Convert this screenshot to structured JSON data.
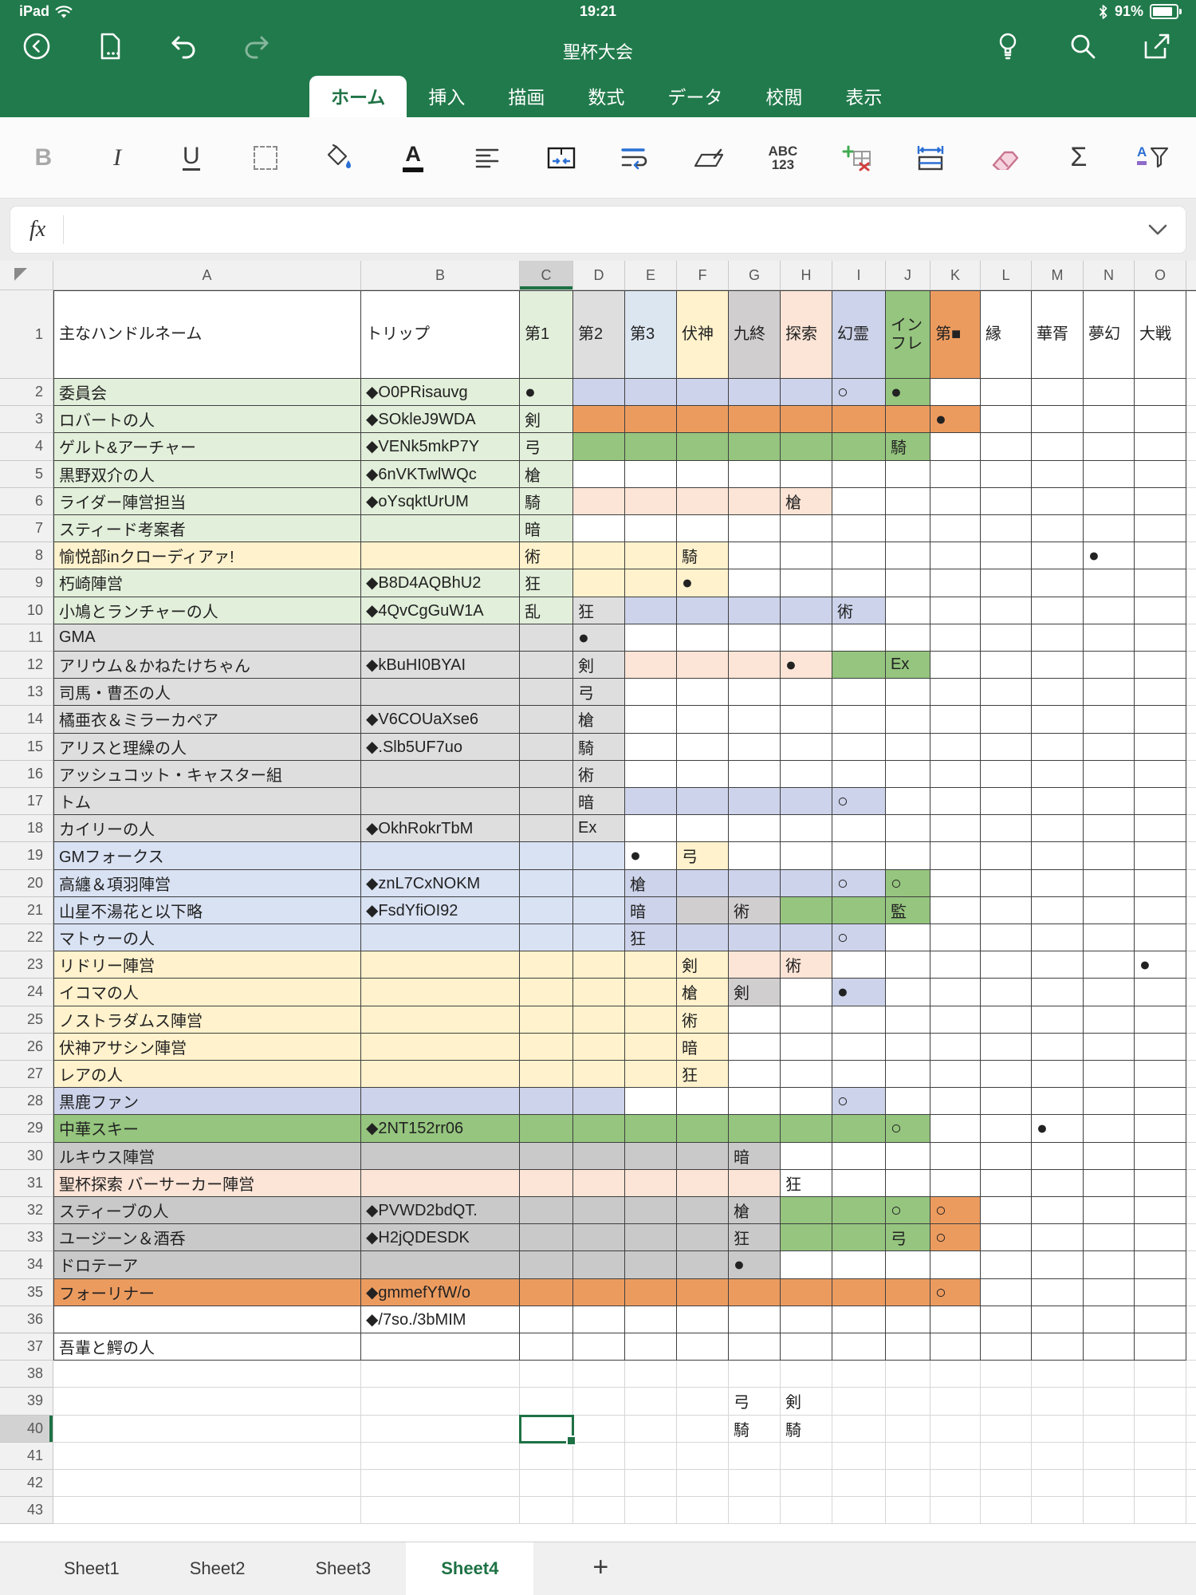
{
  "status_bar": {
    "device_label": "iPad",
    "time": "19:21",
    "battery_percent": "91%",
    "icons": [
      "wifi-icon",
      "bluetooth-icon",
      "battery-icon"
    ]
  },
  "title_bar": {
    "document_title": "聖杯大会",
    "left_icons": [
      "back-icon",
      "export-icon",
      "undo-icon",
      "redo-icon"
    ],
    "right_icons": [
      "ideas-icon",
      "search-icon",
      "share-icon"
    ]
  },
  "ribbon": {
    "tabs": [
      {
        "label": "ホーム",
        "active": true
      },
      {
        "label": "挿入",
        "active": false
      },
      {
        "label": "描画",
        "active": false
      },
      {
        "label": "数式",
        "active": false
      },
      {
        "label": "データ",
        "active": false
      },
      {
        "label": "校閲",
        "active": false
      },
      {
        "label": "表示",
        "active": false
      }
    ]
  },
  "toolbar": {
    "icons": [
      "bold",
      "italic",
      "underline",
      "borders",
      "fill-color",
      "font-color",
      "alignment",
      "merge-cells",
      "wrap-text",
      "format-painter",
      "number-format",
      "insert-delete-cells",
      "cell-size",
      "clear",
      "autosum",
      "sort-filter"
    ],
    "glyphs": {
      "bold": "B",
      "italic": "I",
      "underline": "U",
      "abc": "ABC",
      "numbers": "123",
      "autosum": "Σ",
      "sort_letter": "A"
    }
  },
  "formula_bar": {
    "fx_label": "fx",
    "value": ""
  },
  "sheet_bar": {
    "tabs": [
      "Sheet1",
      "Sheet2",
      "Sheet3",
      "Sheet4"
    ],
    "active": "Sheet4",
    "add_label": "+"
  },
  "colors": {
    "ribbon_green": "#217A4B",
    "selection_green": "#1E7145",
    "active_tab_text": "#217346"
  },
  "grid": {
    "column_letters": [
      "A",
      "B",
      "C",
      "D",
      "E",
      "F",
      "G",
      "H",
      "I",
      "J",
      "K",
      "L",
      "M",
      "N",
      "O"
    ],
    "row_count": 43,
    "selected_cell": {
      "column": "C",
      "row": 40
    },
    "fills": {
      "g": "#E2EFDA",
      "y": "#FFF2CC",
      "gy": "#DEDEDE",
      "bl": "#D9E2F3",
      "lv": "#CCD3EA",
      "gn": "#95C57E",
      "or": "#EC9B5F",
      "pk": "#FCE4D6",
      "dg": "#C9C9C9",
      "hg": "#D0CECE",
      "hb": "#DCE6F1"
    },
    "fill_ranges": [
      [
        1,
        "C",
        "C",
        "g"
      ],
      [
        1,
        "D",
        "D",
        "gy"
      ],
      [
        1,
        "E",
        "E",
        "hb"
      ],
      [
        1,
        "F",
        "F",
        "y"
      ],
      [
        1,
        "G",
        "G",
        "hg"
      ],
      [
        1,
        "H",
        "H",
        "pk"
      ],
      [
        1,
        "I",
        "I",
        "lv"
      ],
      [
        1,
        "J",
        "J",
        "gn"
      ],
      [
        1,
        "K",
        "K",
        "or"
      ],
      [
        2,
        "A",
        "C",
        "g"
      ],
      [
        2,
        "D",
        "I",
        "lv"
      ],
      [
        2,
        "J",
        "J",
        "gn"
      ],
      [
        3,
        "A",
        "C",
        "g"
      ],
      [
        3,
        "D",
        "K",
        "or"
      ],
      [
        4,
        "A",
        "C",
        "g"
      ],
      [
        4,
        "D",
        "J",
        "gn"
      ],
      [
        5,
        "A",
        "C",
        "g"
      ],
      [
        6,
        "A",
        "C",
        "g"
      ],
      [
        6,
        "D",
        "H",
        "pk"
      ],
      [
        7,
        "A",
        "C",
        "g"
      ],
      [
        8,
        "A",
        "F",
        "y"
      ],
      [
        9,
        "A",
        "C",
        "g"
      ],
      [
        9,
        "D",
        "F",
        "y"
      ],
      [
        10,
        "A",
        "C",
        "g"
      ],
      [
        10,
        "D",
        "D",
        "gy"
      ],
      [
        10,
        "E",
        "I",
        "lv"
      ],
      [
        11,
        "A",
        "D",
        "gy"
      ],
      [
        12,
        "A",
        "D",
        "gy"
      ],
      [
        12,
        "E",
        "H",
        "pk"
      ],
      [
        12,
        "I",
        "J",
        "gn"
      ],
      [
        13,
        "A",
        "D",
        "gy"
      ],
      [
        14,
        "A",
        "D",
        "gy"
      ],
      [
        15,
        "A",
        "D",
        "gy"
      ],
      [
        16,
        "A",
        "D",
        "gy"
      ],
      [
        17,
        "A",
        "D",
        "gy"
      ],
      [
        17,
        "E",
        "I",
        "lv"
      ],
      [
        18,
        "A",
        "D",
        "gy"
      ],
      [
        19,
        "A",
        "D",
        "bl"
      ],
      [
        19,
        "F",
        "F",
        "y"
      ],
      [
        20,
        "A",
        "D",
        "bl"
      ],
      [
        20,
        "E",
        "I",
        "lv"
      ],
      [
        20,
        "J",
        "J",
        "gn"
      ],
      [
        21,
        "A",
        "D",
        "bl"
      ],
      [
        21,
        "E",
        "E",
        "lv"
      ],
      [
        21,
        "F",
        "G",
        "hg"
      ],
      [
        21,
        "H",
        "J",
        "gn"
      ],
      [
        22,
        "A",
        "D",
        "bl"
      ],
      [
        22,
        "E",
        "I",
        "lv"
      ],
      [
        23,
        "A",
        "F",
        "y"
      ],
      [
        23,
        "G",
        "H",
        "pk"
      ],
      [
        24,
        "A",
        "F",
        "y"
      ],
      [
        24,
        "G",
        "G",
        "hg"
      ],
      [
        24,
        "I",
        "I",
        "lv"
      ],
      [
        25,
        "A",
        "F",
        "y"
      ],
      [
        26,
        "A",
        "F",
        "y"
      ],
      [
        27,
        "A",
        "F",
        "y"
      ],
      [
        28,
        "A",
        "D",
        "lv"
      ],
      [
        28,
        "I",
        "I",
        "lv"
      ],
      [
        29,
        "A",
        "J",
        "gn"
      ],
      [
        30,
        "A",
        "G",
        "dg"
      ],
      [
        31,
        "A",
        "G",
        "pk"
      ],
      [
        32,
        "A",
        "G",
        "dg"
      ],
      [
        32,
        "H",
        "J",
        "gn"
      ],
      [
        32,
        "K",
        "K",
        "or"
      ],
      [
        33,
        "A",
        "G",
        "dg"
      ],
      [
        33,
        "H",
        "J",
        "gn"
      ],
      [
        33,
        "K",
        "K",
        "or"
      ],
      [
        34,
        "A",
        "G",
        "dg"
      ],
      [
        35,
        "A",
        "K",
        "or"
      ]
    ],
    "cells": [
      [
        1,
        "A",
        "主なハンドルネーム"
      ],
      [
        1,
        "B",
        "トリップ"
      ],
      [
        1,
        "C",
        "第1"
      ],
      [
        1,
        "D",
        "第2"
      ],
      [
        1,
        "E",
        "第3"
      ],
      [
        1,
        "F",
        "伏神"
      ],
      [
        1,
        "G",
        "九終"
      ],
      [
        1,
        "H",
        "探索"
      ],
      [
        1,
        "I",
        "幻霊"
      ],
      [
        1,
        "J",
        "インフレ"
      ],
      [
        1,
        "K",
        "第■"
      ],
      [
        1,
        "L",
        "縁"
      ],
      [
        1,
        "M",
        "華胥"
      ],
      [
        1,
        "N",
        "夢幻"
      ],
      [
        1,
        "O",
        "大戦"
      ],
      [
        2,
        "A",
        "委員会"
      ],
      [
        2,
        "B",
        "◆O0PRisauvg"
      ],
      [
        2,
        "C",
        "●"
      ],
      [
        2,
        "I",
        "○"
      ],
      [
        2,
        "J",
        "●"
      ],
      [
        3,
        "A",
        "ロバートの人"
      ],
      [
        3,
        "B",
        "◆SOkleJ9WDA"
      ],
      [
        3,
        "C",
        "剣"
      ],
      [
        3,
        "K",
        "●"
      ],
      [
        4,
        "A",
        "ゲルト&アーチャー"
      ],
      [
        4,
        "B",
        "◆VENk5mkP7Y"
      ],
      [
        4,
        "C",
        "弓"
      ],
      [
        4,
        "J",
        "騎"
      ],
      [
        5,
        "A",
        "黒野双介の人"
      ],
      [
        5,
        "B",
        "◆6nVKTwlWQc"
      ],
      [
        5,
        "C",
        "槍"
      ],
      [
        6,
        "A",
        "ライダー陣営担当"
      ],
      [
        6,
        "B",
        "◆oYsqktUrUM"
      ],
      [
        6,
        "C",
        "騎"
      ],
      [
        6,
        "H",
        "槍"
      ],
      [
        7,
        "A",
        "スティード考案者"
      ],
      [
        7,
        "C",
        "暗"
      ],
      [
        8,
        "A",
        "愉悦部inクローディアァ!"
      ],
      [
        8,
        "C",
        "術"
      ],
      [
        8,
        "F",
        "騎"
      ],
      [
        8,
        "N",
        "●"
      ],
      [
        9,
        "A",
        "朽崎陣営"
      ],
      [
        9,
        "B",
        "◆B8D4AQBhU2"
      ],
      [
        9,
        "C",
        "狂"
      ],
      [
        9,
        "F",
        "●"
      ],
      [
        10,
        "A",
        "小鳩とランチャーの人"
      ],
      [
        10,
        "B",
        "◆4QvCgGuW1A"
      ],
      [
        10,
        "C",
        "乱"
      ],
      [
        10,
        "D",
        "狂"
      ],
      [
        10,
        "I",
        "術"
      ],
      [
        11,
        "A",
        "GMA"
      ],
      [
        11,
        "D",
        "●"
      ],
      [
        12,
        "A",
        "アリウム＆かねたけちゃん"
      ],
      [
        12,
        "B",
        "◆kBuHI0BYAI"
      ],
      [
        12,
        "D",
        "剣"
      ],
      [
        12,
        "H",
        "●"
      ],
      [
        12,
        "J",
        "Ex"
      ],
      [
        13,
        "A",
        "司馬・曹丕の人"
      ],
      [
        13,
        "D",
        "弓"
      ],
      [
        14,
        "A",
        "橘亜衣＆ミラーカペア"
      ],
      [
        14,
        "B",
        "◆V6COUaXse6"
      ],
      [
        14,
        "D",
        "槍"
      ],
      [
        15,
        "A",
        "アリスと理繰の人"
      ],
      [
        15,
        "B",
        "◆.Slb5UF7uo"
      ],
      [
        15,
        "D",
        "騎"
      ],
      [
        16,
        "A",
        "アッシュコット・キャスター組"
      ],
      [
        16,
        "D",
        "術"
      ],
      [
        17,
        "A",
        "トム"
      ],
      [
        17,
        "D",
        "暗"
      ],
      [
        17,
        "I",
        "○"
      ],
      [
        18,
        "A",
        "カイリーの人"
      ],
      [
        18,
        "B",
        "◆OkhRokrTbM"
      ],
      [
        18,
        "D",
        "Ex"
      ],
      [
        19,
        "A",
        "GMフォークス"
      ],
      [
        19,
        "E",
        "●"
      ],
      [
        19,
        "F",
        "弓"
      ],
      [
        20,
        "A",
        "高纏＆項羽陣営"
      ],
      [
        20,
        "B",
        "◆znL7CxNOKM"
      ],
      [
        20,
        "E",
        "槍"
      ],
      [
        20,
        "I",
        "○"
      ],
      [
        20,
        "J",
        "○"
      ],
      [
        21,
        "A",
        "山星不湯花と以下略"
      ],
      [
        21,
        "B",
        "◆FsdYfiOI92"
      ],
      [
        21,
        "E",
        "暗"
      ],
      [
        21,
        "G",
        "術"
      ],
      [
        21,
        "J",
        "監"
      ],
      [
        22,
        "A",
        "マトゥーの人"
      ],
      [
        22,
        "E",
        "狂"
      ],
      [
        22,
        "I",
        "○"
      ],
      [
        23,
        "A",
        "リドリー陣営"
      ],
      [
        23,
        "F",
        "剣"
      ],
      [
        23,
        "H",
        "術"
      ],
      [
        23,
        "O",
        "●"
      ],
      [
        24,
        "A",
        "イコマの人"
      ],
      [
        24,
        "F",
        "槍"
      ],
      [
        24,
        "G",
        "剣"
      ],
      [
        24,
        "I",
        "●"
      ],
      [
        25,
        "A",
        "ノストラダムス陣営"
      ],
      [
        25,
        "F",
        "術"
      ],
      [
        26,
        "A",
        "伏神アサシン陣営"
      ],
      [
        26,
        "F",
        "暗"
      ],
      [
        27,
        "A",
        "レアの人"
      ],
      [
        27,
        "F",
        "狂"
      ],
      [
        28,
        "A",
        "黒鹿ファン"
      ],
      [
        28,
        "I",
        "○"
      ],
      [
        29,
        "A",
        "中華スキー"
      ],
      [
        29,
        "B",
        "◆2NT152rr06"
      ],
      [
        29,
        "J",
        "○"
      ],
      [
        29,
        "M",
        "●"
      ],
      [
        30,
        "A",
        "ルキウス陣営"
      ],
      [
        30,
        "G",
        "暗"
      ],
      [
        31,
        "A",
        "聖杯探索 バーサーカー陣営"
      ],
      [
        31,
        "H",
        "狂"
      ],
      [
        32,
        "A",
        "スティーブの人"
      ],
      [
        32,
        "B",
        "◆PVWD2bdQT."
      ],
      [
        32,
        "G",
        "槍"
      ],
      [
        32,
        "J",
        "○"
      ],
      [
        32,
        "K",
        "○"
      ],
      [
        33,
        "A",
        "ユージーン＆酒呑"
      ],
      [
        33,
        "B",
        "◆H2jQDESDK"
      ],
      [
        33,
        "G",
        "狂"
      ],
      [
        33,
        "J",
        "弓"
      ],
      [
        33,
        "K",
        "○"
      ],
      [
        34,
        "A",
        "ドロテーア"
      ],
      [
        34,
        "G",
        "●"
      ],
      [
        35,
        "A",
        "フォーリナー"
      ],
      [
        35,
        "B",
        "◆gmmefYfW/o"
      ],
      [
        35,
        "K",
        "○"
      ],
      [
        36,
        "B",
        "◆/7so./3bMIM"
      ],
      [
        37,
        "A",
        "吾輩と鰐の人"
      ],
      [
        39,
        "G",
        "弓"
      ],
      [
        39,
        "H",
        "剣"
      ],
      [
        40,
        "G",
        "騎"
      ],
      [
        40,
        "H",
        "騎"
      ]
    ]
  }
}
